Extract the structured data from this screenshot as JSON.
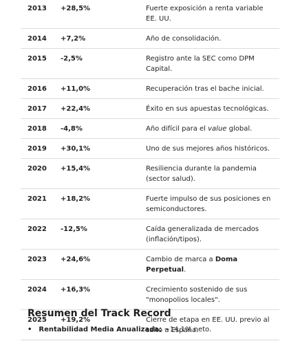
{
  "table": {
    "rows": [
      {
        "year": "2013",
        "return": "+28,5%",
        "comment": [
          "Fuerte exposición a renta variable EE. UU."
        ]
      },
      {
        "year": "2014",
        "return": "+7,2%",
        "comment": [
          "Año de consolidación."
        ]
      },
      {
        "year": "2015",
        "return": "-2,5%",
        "comment": [
          "Registro ante la SEC como DPM Capital."
        ]
      },
      {
        "year": "2016",
        "return": "+11,0%",
        "comment": [
          "Recuperación tras el bache inicial."
        ]
      },
      {
        "year": "2017",
        "return": "+22,4%",
        "comment": [
          "Éxito en sus apuestas tecnológicas."
        ]
      },
      {
        "year": "2018",
        "return": "-4,8%",
        "comment": [
          "Año difícil para el ",
          {
            "text": "value",
            "style": "italic"
          },
          " global."
        ]
      },
      {
        "year": "2019",
        "return": "+30,1%",
        "comment": [
          "Uno de sus mejores años históricos."
        ]
      },
      {
        "year": "2020",
        "return": "+15,4%",
        "comment": [
          "Resiliencia durante la pandemia (sector salud)."
        ]
      },
      {
        "year": "2021",
        "return": "+18,2%",
        "comment": [
          "Fuerte impulso de sus posiciones en semiconductores."
        ]
      },
      {
        "year": "2022",
        "return": "-12,5%",
        "comment": [
          "Caída generalizada de mercados (inflación/tipos)."
        ]
      },
      {
        "year": "2023",
        "return": "+24,6%",
        "comment": [
          "Cambio de marca a ",
          {
            "text": "Doma Perpetual",
            "style": "bold"
          },
          "."
        ]
      },
      {
        "year": "2024",
        "return": "+16,3%",
        "comment": [
          "Crecimiento sostenido de sus \"monopolios locales\"."
        ]
      },
      {
        "year": "2025",
        "return": "+19,2%",
        "comment": [
          "Cierre de etapa en EE. UU. previo al salto a España."
        ]
      }
    ]
  },
  "summary": {
    "title": "Resumen del Track Record",
    "items": [
      {
        "label": "Rentabilidad Media Anualizada:",
        "text": " ~14.1% neto."
      }
    ]
  }
}
